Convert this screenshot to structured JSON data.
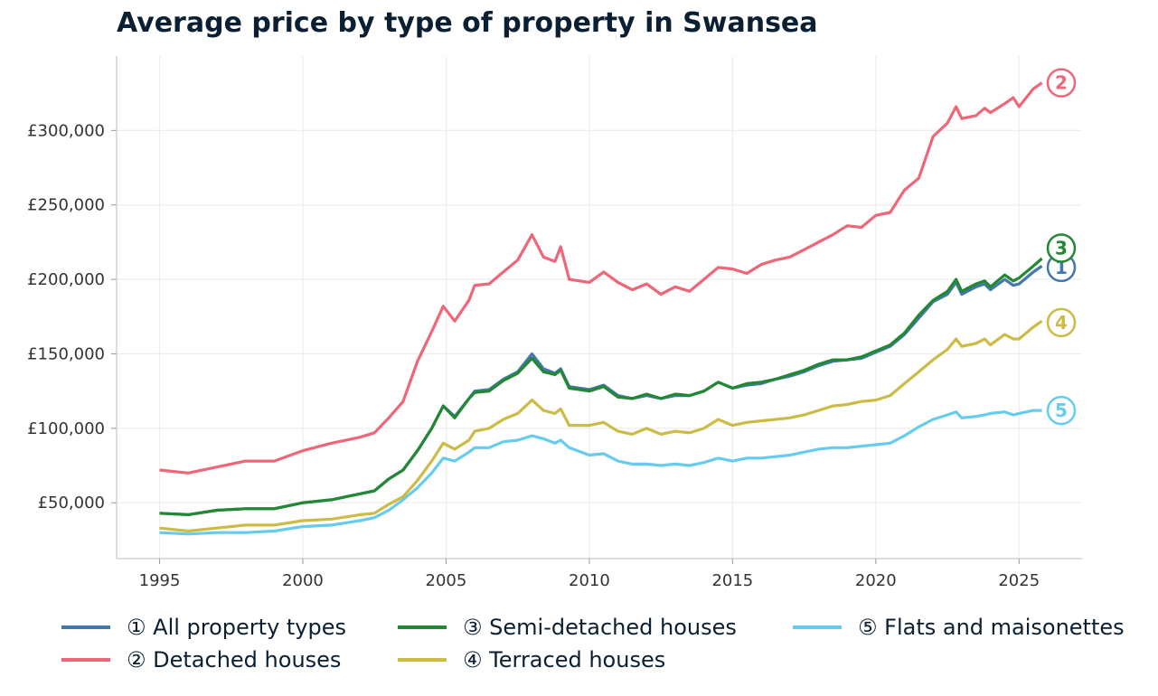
{
  "chart_data": {
    "type": "line",
    "title": "Average price by type of property in Swansea",
    "xlabel": "",
    "ylabel": "",
    "xlim": [
      1993.5,
      2027.2
    ],
    "ylim": [
      12500,
      350000
    ],
    "xticks": [
      1995,
      2000,
      2005,
      2010,
      2015,
      2020,
      2025
    ],
    "xtick_labels": [
      "1995",
      "2000",
      "2005",
      "2010",
      "2015",
      "2020",
      "2025"
    ],
    "yticks": [
      50000,
      100000,
      150000,
      200000,
      250000,
      300000
    ],
    "ytick_labels": [
      "£50,000",
      "£100,000",
      "£150,000",
      "£200,000",
      "£250,000",
      "£300,000"
    ],
    "grid": true,
    "legend_position": "bottom",
    "x": [
      1995,
      1996,
      1997,
      1998,
      1999,
      2000,
      2001,
      2002,
      2002.5,
      2003,
      2003.5,
      2004,
      2004.5,
      2004.9,
      2005.3,
      2005.8,
      2006,
      2006.5,
      2007,
      2007.5,
      2008,
      2008.4,
      2008.8,
      2009,
      2009.3,
      2010,
      2010.5,
      2011,
      2011.5,
      2012,
      2012.5,
      2013,
      2013.5,
      2014,
      2014.5,
      2015,
      2015.5,
      2016,
      2016.5,
      2017,
      2017.5,
      2018,
      2018.5,
      2019,
      2019.5,
      2020,
      2020.5,
      2021,
      2021.5,
      2022,
      2022.5,
      2022.8,
      2023,
      2023.5,
      2023.8,
      2024,
      2024.5,
      2024.8,
      2025,
      2025.5,
      2025.8
    ],
    "series": [
      {
        "name": "① All property types",
        "marker": "1",
        "color": "#4477aa",
        "values": [
          43000,
          42000,
          45000,
          46000,
          46000,
          50000,
          52000,
          56000,
          58000,
          66000,
          72000,
          85000,
          100000,
          115000,
          108000,
          120000,
          125000,
          126000,
          133000,
          138000,
          150000,
          140000,
          137000,
          140000,
          128000,
          126000,
          129000,
          122000,
          120000,
          122000,
          120000,
          122000,
          122000,
          125000,
          131000,
          127000,
          129000,
          130000,
          133000,
          135000,
          138000,
          142000,
          145000,
          146000,
          147000,
          151000,
          155000,
          163000,
          174000,
          185000,
          190000,
          198000,
          190000,
          195000,
          197000,
          193000,
          200000,
          196000,
          197000,
          205000,
          209000
        ]
      },
      {
        "name": "② Detached houses",
        "marker": "2",
        "color": "#ee6677",
        "values": [
          72000,
          70000,
          74000,
          78000,
          78000,
          85000,
          90000,
          94000,
          97000,
          107000,
          118000,
          145000,
          165000,
          182000,
          172000,
          186000,
          196000,
          197000,
          205000,
          213000,
          230000,
          215000,
          212000,
          222000,
          200000,
          198000,
          205000,
          198000,
          193000,
          197000,
          190000,
          195000,
          192000,
          200000,
          208000,
          207000,
          204000,
          210000,
          213000,
          215000,
          220000,
          225000,
          230000,
          236000,
          235000,
          243000,
          245000,
          260000,
          268000,
          296000,
          305000,
          316000,
          308000,
          310000,
          315000,
          312000,
          318000,
          322000,
          316000,
          328000,
          332000
        ]
      },
      {
        "name": "③ Semi-detached houses",
        "marker": "3",
        "color": "#228833",
        "values": [
          43000,
          42000,
          45000,
          46000,
          46000,
          50000,
          52000,
          56000,
          58000,
          66000,
          72000,
          85000,
          100000,
          115000,
          107000,
          120000,
          124000,
          125000,
          132000,
          137000,
          147000,
          138000,
          136000,
          139000,
          127000,
          125000,
          128000,
          121000,
          120000,
          123000,
          120000,
          123000,
          122000,
          125000,
          131000,
          127000,
          130000,
          131000,
          133000,
          136000,
          139000,
          143000,
          146000,
          146000,
          148000,
          152000,
          156000,
          164000,
          176000,
          186000,
          192000,
          200000,
          192000,
          197000,
          199000,
          195000,
          203000,
          199000,
          201000,
          209000,
          214000
        ]
      },
      {
        "name": "④ Terraced houses",
        "marker": "4",
        "color": "#ccbb44",
        "values": [
          33000,
          31000,
          33000,
          35000,
          35000,
          38000,
          39000,
          42000,
          43000,
          49000,
          54000,
          65000,
          78000,
          90000,
          86000,
          92000,
          98000,
          100000,
          106000,
          110000,
          119000,
          112000,
          110000,
          113000,
          102000,
          102000,
          104000,
          98000,
          96000,
          100000,
          96000,
          98000,
          97000,
          100000,
          106000,
          102000,
          104000,
          105000,
          106000,
          107000,
          109000,
          112000,
          115000,
          116000,
          118000,
          119000,
          122000,
          130000,
          138000,
          146000,
          153000,
          160000,
          155000,
          157000,
          160000,
          156000,
          163000,
          160000,
          160000,
          168000,
          172000
        ]
      },
      {
        "name": "⑤ Flats and maisonettes",
        "marker": "5",
        "color": "#66ccee",
        "values": [
          30000,
          29000,
          30000,
          30000,
          31000,
          34000,
          35000,
          38000,
          40000,
          45000,
          52000,
          60000,
          70000,
          80000,
          78000,
          84000,
          87000,
          87000,
          91000,
          92000,
          95000,
          93000,
          90000,
          92000,
          87000,
          82000,
          83000,
          78000,
          76000,
          76000,
          75000,
          76000,
          75000,
          77000,
          80000,
          78000,
          80000,
          80000,
          81000,
          82000,
          84000,
          86000,
          87000,
          87000,
          88000,
          89000,
          90000,
          95000,
          101000,
          106000,
          109000,
          111000,
          107000,
          108000,
          109000,
          110000,
          111000,
          109000,
          110000,
          112000,
          112000
        ]
      }
    ]
  }
}
